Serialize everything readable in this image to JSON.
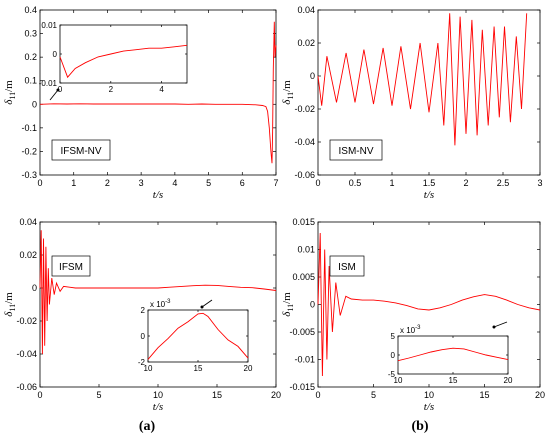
{
  "chart_data": [
    {
      "id": "p1",
      "type": "line",
      "legend_box": "IFSM-NV",
      "xlabel": "t/s",
      "ylabel_main": "δ",
      "ylabel_sub": "11",
      "ylabel_unit": "/m",
      "xlim": [
        0,
        7
      ],
      "ylim": [
        -0.3,
        0.4
      ],
      "xticks": [
        "0",
        "1",
        "2",
        "3",
        "4",
        "5",
        "6",
        "7"
      ],
      "yticks": [
        "-0.3",
        "-0.2",
        "-0.1",
        "0",
        "0.1",
        "0.2",
        "0.3",
        "0.4"
      ],
      "color": "#ff0000",
      "series": [
        {
          "x": [
            0,
            0.4,
            0.8,
            1.2,
            1.6,
            2.0,
            2.4,
            2.8,
            3.2,
            3.6,
            4.0,
            4.4,
            4.8,
            5.2,
            5.6,
            6.0,
            6.4,
            6.6,
            6.7,
            6.75,
            6.8,
            6.85,
            6.88,
            6.9,
            6.92,
            6.95,
            6.97,
            7.0
          ],
          "y": [
            0,
            0.002,
            0.001,
            0.002,
            0.001,
            0.001,
            0.001,
            0.001,
            0.001,
            0.001,
            0.001,
            0.0,
            0.001,
            0.0,
            0.0,
            0.0,
            -0.002,
            -0.005,
            -0.01,
            -0.03,
            -0.1,
            -0.2,
            -0.25,
            -0.12,
            0.15,
            0.35,
            0.2,
            0.25
          ]
        }
      ],
      "inset": {
        "xlim": [
          0,
          5
        ],
        "ylim": [
          -0.01,
          0.01
        ],
        "xticks": [
          "0",
          "2",
          "4"
        ],
        "yticks": [
          "-0.01",
          "0",
          "0.01"
        ],
        "series": [
          {
            "x": [
              0,
              0.3,
              0.6,
              1.0,
              1.5,
              2.0,
              2.5,
              3.0,
              3.5,
              4.0,
              4.5,
              5.0
            ],
            "y": [
              -0.001,
              -0.008,
              -0.005,
              -0.003,
              -0.001,
              0.0,
              0.001,
              0.0015,
              0.002,
              0.002,
              0.0025,
              0.003
            ]
          }
        ]
      }
    },
    {
      "id": "p2",
      "type": "line",
      "legend_box": "ISM-NV",
      "xlabel": "t/s",
      "ylabel_main": "δ",
      "ylabel_sub": "11",
      "ylabel_unit": "/m",
      "xlim": [
        0,
        3
      ],
      "ylim": [
        -0.06,
        0.04
      ],
      "xticks": [
        "0",
        "0.5",
        "1",
        "1.5",
        "2",
        "2.5",
        "3"
      ],
      "yticks": [
        "-0.06",
        "-0.04",
        "-0.02",
        "0",
        "0.02",
        "0.04"
      ],
      "color": "#ff0000",
      "series": [
        {
          "x": [
            0,
            0.05,
            0.12,
            0.25,
            0.38,
            0.5,
            0.62,
            0.75,
            0.88,
            1.0,
            1.12,
            1.25,
            1.38,
            1.5,
            1.62,
            1.7,
            1.78,
            1.85,
            1.92,
            2.0,
            2.08,
            2.15,
            2.22,
            2.3,
            2.38,
            2.45,
            2.52,
            2.6,
            2.68,
            2.75,
            2.82
          ],
          "y": [
            0.0,
            -0.018,
            0.012,
            -0.016,
            0.014,
            -0.016,
            0.016,
            -0.017,
            0.017,
            -0.018,
            0.018,
            -0.02,
            0.02,
            -0.022,
            0.02,
            -0.03,
            0.038,
            -0.042,
            0.036,
            -0.035,
            0.034,
            -0.036,
            0.028,
            -0.03,
            0.03,
            -0.025,
            0.03,
            -0.028,
            0.024,
            -0.02,
            0.038
          ]
        }
      ]
    },
    {
      "id": "p3",
      "type": "line",
      "legend_box": "IFSM",
      "xlabel": "t/s",
      "ylabel_main": "δ",
      "ylabel_sub": "11",
      "ylabel_unit": "/m",
      "xlim": [
        0,
        20
      ],
      "ylim": [
        -0.06,
        0.04
      ],
      "xticks": [
        "0",
        "5",
        "10",
        "15",
        "20"
      ],
      "yticks": [
        "-0.06",
        "-0.04",
        "-0.02",
        "0",
        "0.02",
        "0.04"
      ],
      "color": "#ff0000",
      "series": [
        {
          "x": [
            0,
            0.1,
            0.2,
            0.3,
            0.4,
            0.5,
            0.6,
            0.7,
            0.8,
            1.0,
            1.2,
            1.4,
            1.7,
            2.0,
            2.5,
            3,
            4,
            5,
            6,
            7,
            8,
            9,
            10,
            11,
            12,
            13,
            14,
            15,
            16,
            17,
            18,
            19,
            20
          ],
          "y": [
            0,
            0.035,
            -0.04,
            0.03,
            -0.035,
            0.025,
            -0.02,
            0.012,
            -0.01,
            0.006,
            -0.004,
            0.003,
            -0.002,
            0.001,
            0.0005,
            0.0,
            0.0,
            0.0,
            0.0,
            0.0,
            0.0,
            0.0,
            0.0,
            0.0005,
            0.001,
            0.0014,
            0.0017,
            0.0016,
            0.001,
            0.0004,
            0.0002,
            -0.0006,
            -0.0015
          ]
        }
      ],
      "inset": {
        "xlim": [
          10,
          20
        ],
        "ylim": [
          -2,
          2
        ],
        "exponent": "x 10",
        "exponent_power": "-3",
        "xticks": [
          "10",
          "15",
          "20"
        ],
        "yticks": [
          "-2",
          "0",
          "2"
        ],
        "series": [
          {
            "x": [
              10,
              11,
              12,
              13,
              14,
              15,
              15.5,
              16,
              17,
              18,
              19,
              20
            ],
            "y": [
              -1.8,
              -0.9,
              -0.2,
              0.6,
              1.1,
              1.7,
              1.75,
              1.5,
              0.5,
              -0.3,
              -0.8,
              -1.7
            ]
          }
        ]
      }
    },
    {
      "id": "p4",
      "type": "line",
      "legend_box": "ISM",
      "xlabel": "t/s",
      "ylabel_main": "δ",
      "ylabel_sub": "11",
      "ylabel_unit": "/m",
      "xlim": [
        0,
        20
      ],
      "ylim": [
        -0.015,
        0.015
      ],
      "xticks": [
        "0",
        "5",
        "10",
        "15",
        "20"
      ],
      "yticks": [
        "-0.015",
        "-0.01",
        "-0.005",
        "0",
        "0.005",
        "0.01",
        "0.015"
      ],
      "color": "#ff0000",
      "series": [
        {
          "x": [
            0,
            0.2,
            0.4,
            0.6,
            0.8,
            1.0,
            1.3,
            1.6,
            2.0,
            2.5,
            3,
            4,
            5,
            6,
            7,
            8,
            9,
            10,
            11,
            12,
            13,
            14,
            15,
            16,
            17,
            18,
            19,
            20
          ],
          "y": [
            0,
            0.013,
            -0.013,
            0.01,
            -0.01,
            0.007,
            -0.005,
            0.004,
            -0.002,
            0.0015,
            0.001,
            0.0008,
            0.0008,
            0.0006,
            0.0003,
            -0.0002,
            -0.0008,
            -0.001,
            -0.0006,
            0.0,
            0.0008,
            0.0014,
            0.0018,
            0.0015,
            0.0008,
            0.0,
            -0.0006,
            -0.001
          ]
        }
      ],
      "inset": {
        "xlim": [
          10,
          20
        ],
        "ylim": [
          -5,
          5
        ],
        "exponent": "x 10",
        "exponent_power": "-3",
        "xticks": [
          "10",
          "15",
          "20"
        ],
        "yticks": [
          "-5",
          "0",
          "5"
        ],
        "series": [
          {
            "x": [
              10,
              11,
              12,
              13,
              14,
              15,
              16,
              17,
              18,
              19,
              20
            ],
            "y": [
              -1.5,
              -0.8,
              0.0,
              0.8,
              1.4,
              1.8,
              1.6,
              0.8,
              0.0,
              -0.6,
              -1.2
            ]
          }
        ]
      }
    }
  ],
  "captions": {
    "a": "(a)",
    "b": "(b)"
  }
}
